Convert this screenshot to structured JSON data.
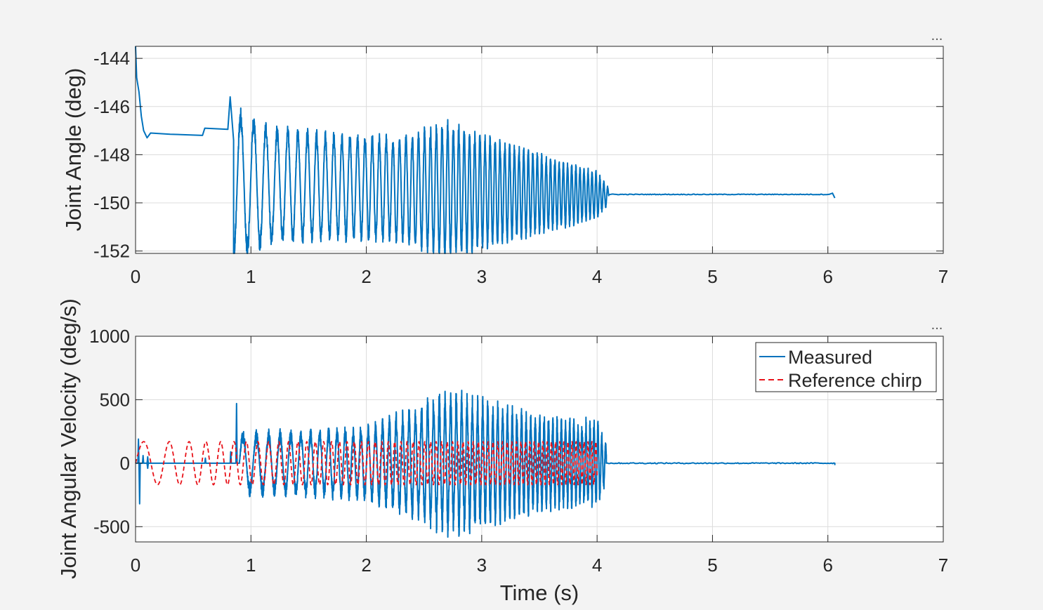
{
  "figure": {
    "background": "#f3f3f3",
    "axes_background": "#ffffff",
    "grid_color": "#dcdcdc",
    "toolbar_glyph": "..."
  },
  "chart_data": [
    {
      "type": "line",
      "ylabel": "Joint Angle (deg)",
      "xlabel": "",
      "xlim": [
        0,
        7
      ],
      "ylim": [
        -152.1,
        -143.5
      ],
      "x_ticks": [
        "0",
        "1",
        "2",
        "3",
        "4",
        "5",
        "6",
        "7"
      ],
      "y_ticks": [
        -152,
        -150,
        -148,
        -146,
        -144
      ],
      "y_tick_labels": [
        "-152",
        "-150",
        "-148",
        "-146",
        "-144"
      ],
      "grid": true,
      "series": [
        {
          "color": "#0072bd",
          "style": "solid",
          "keypoints": [
            [
              0.0,
              -143.4
            ],
            [
              0.01,
              -144.8
            ],
            [
              0.03,
              -145.4
            ],
            [
              0.05,
              -146.4
            ],
            [
              0.07,
              -147.0
            ],
            [
              0.1,
              -147.3
            ],
            [
              0.13,
              -147.1
            ],
            [
              0.3,
              -147.15
            ],
            [
              0.58,
              -147.2
            ],
            [
              0.6,
              -146.9
            ],
            [
              0.8,
              -146.95
            ],
            [
              0.82,
              -145.6
            ],
            [
              0.85,
              -147.4
            ]
          ],
          "oscillation": {
            "t_start": 0.85,
            "t_end": 4.1,
            "freq_start_hz": 8,
            "freq_end_hz": 30,
            "center_start": -149.2,
            "center_end": -149.7,
            "amp_profile": [
              [
                0.85,
                2.9
              ],
              [
                1.2,
                2.2
              ],
              [
                1.8,
                2.0
              ],
              [
                2.3,
                2.0
              ],
              [
                2.7,
                2.6
              ],
              [
                3.0,
                2.2
              ],
              [
                3.5,
                1.5
              ],
              [
                4.0,
                0.9
              ],
              [
                4.1,
                0.3
              ]
            ],
            "tail_value": -149.65,
            "end_time": 6.06,
            "end_value": -149.8
          }
        }
      ]
    },
    {
      "type": "line",
      "ylabel": "Joint Angular Velocity (deg/s)",
      "xlabel": "Time (s)",
      "xlim": [
        0,
        7
      ],
      "ylim": [
        -620,
        1000
      ],
      "x_ticks": [
        "0",
        "1",
        "2",
        "3",
        "4",
        "5",
        "6",
        "7"
      ],
      "y_ticks": [
        -500,
        0,
        500,
        1000
      ],
      "y_tick_labels": [
        "-500",
        "0",
        "500",
        "1000"
      ],
      "grid": true,
      "legend": {
        "position": "top-right",
        "entries": [
          "Measured",
          "Reference chirp"
        ]
      },
      "series": [
        {
          "name": "Measured",
          "color": "#0072bd",
          "style": "solid",
          "spikes": [
            [
              0.02,
              190
            ],
            [
              0.03,
              -320
            ],
            [
              0.06,
              60
            ],
            [
              0.1,
              -40
            ],
            [
              0.1,
              50
            ],
            [
              0.6,
              40
            ],
            [
              0.82,
              90
            ],
            [
              0.87,
              470
            ]
          ],
          "oscillation": {
            "t_start": 0.9,
            "t_end": 4.08,
            "freq_start_hz": 8,
            "freq_end_hz": 30,
            "amp_profile": [
              [
                0.9,
                220
              ],
              [
                1.5,
                230
              ],
              [
                2.0,
                260
              ],
              [
                2.4,
                380
              ],
              [
                2.7,
                500
              ],
              [
                3.0,
                450
              ],
              [
                3.5,
                330
              ],
              [
                4.0,
                300
              ],
              [
                4.08,
                150
              ]
            ],
            "end_time": 6.06
          }
        },
        {
          "name": "Reference chirp",
          "color": "#e8131a",
          "style": "dashed",
          "amplitude": 170,
          "t_start": 0.0,
          "t_end": 4.0,
          "freq_start_hz": 3.3,
          "freq_end_hz": 30
        }
      ]
    }
  ]
}
